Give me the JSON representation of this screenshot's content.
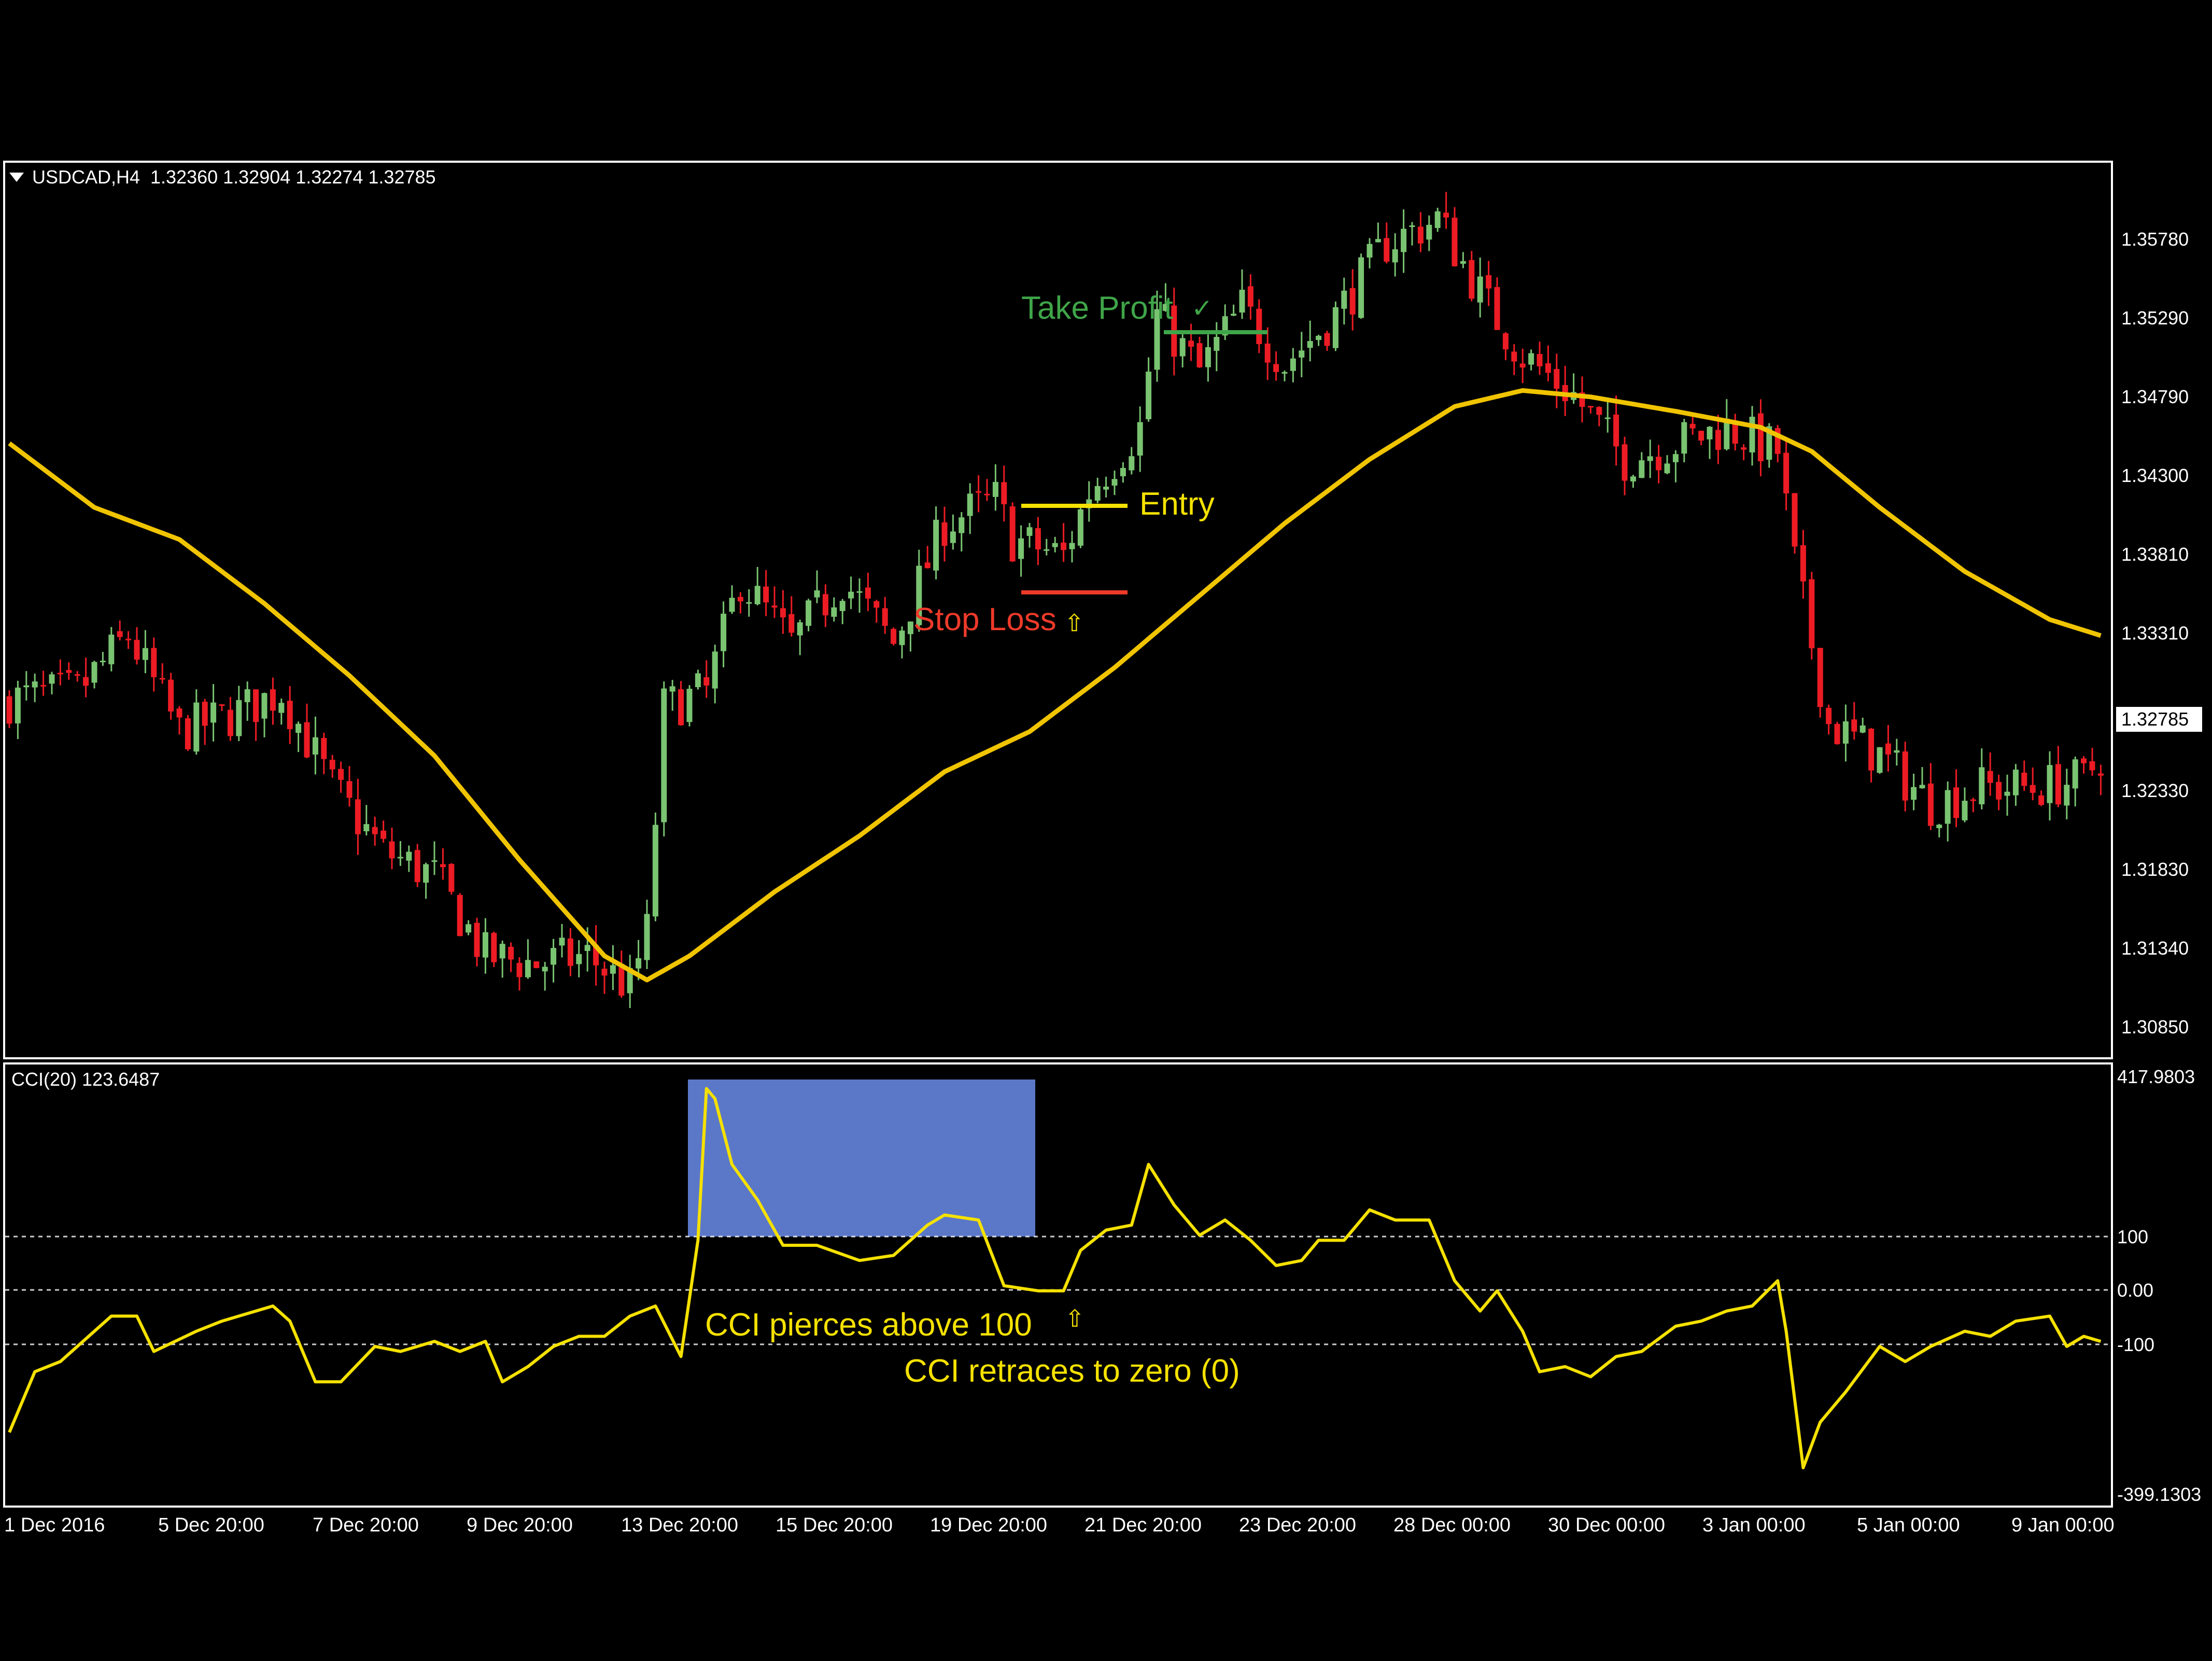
{
  "header": {
    "symbol": "USDCAD,H4",
    "ohlc": "1.32360 1.32904 1.32274 1.32785"
  },
  "indicator": {
    "label": "CCI(20) 123.6487"
  },
  "annotations": {
    "take_profit": "Take Profit",
    "check_mark": "✓",
    "entry": "Entry",
    "stop_loss": "Stop Loss",
    "upper_arrow": "⇧",
    "cci_pierce": "CCI pierces above 100",
    "cci_retrace": "CCI retraces to zero (0)",
    "lower_arrow": "⇧"
  },
  "colors": {
    "background": "#000000",
    "bull": "#79c371",
    "bear": "#ed1c24",
    "ma_line": "#f0c400",
    "cci_line": "#f5e100",
    "highlight": "#5b78c8",
    "take_profit": "#3fa549",
    "entry": "#f5e100",
    "stop_loss": "#ee3a2a",
    "grid": "#ffffff",
    "axis_text": "#ffffff"
  },
  "chart_data": {
    "type": "candlestick",
    "symbol": "USDCAD",
    "timeframe": "H4",
    "price_axis": {
      "ticks": [
        "1.35780",
        "1.35290",
        "1.34790",
        "1.34300",
        "1.33810",
        "1.33310",
        "1.32330",
        "1.31830",
        "1.31340",
        "1.30850"
      ],
      "current": "1.32785",
      "range": [
        1.3065,
        1.3615
      ]
    },
    "time_axis": {
      "labels": [
        "1 Dec 2016",
        "5 Dec 20:00",
        "7 Dec 20:00",
        "9 Dec 20:00",
        "13 Dec 20:00",
        "15 Dec 20:00",
        "19 Dec 20:00",
        "21 Dec 20:00",
        "23 Dec 20:00",
        "28 Dec 00:00",
        "30 Dec 00:00",
        "3 Jan 00:00",
        "5 Jan 00:00",
        "9 Jan 00:00"
      ]
    },
    "price_anchors": [
      [
        0,
        1.3285
      ],
      [
        8,
        1.329
      ],
      [
        14,
        1.3325
      ],
      [
        20,
        1.3265
      ],
      [
        26,
        1.3275
      ],
      [
        32,
        1.329
      ],
      [
        38,
        1.323
      ],
      [
        44,
        1.319
      ],
      [
        50,
        1.3175
      ],
      [
        56,
        1.3125
      ],
      [
        62,
        1.312
      ],
      [
        68,
        1.3125
      ],
      [
        73,
        1.3105
      ],
      [
        75,
        1.314
      ],
      [
        77,
        1.328
      ],
      [
        82,
        1.329
      ],
      [
        86,
        1.336
      ],
      [
        92,
        1.332
      ],
      [
        98,
        1.336
      ],
      [
        104,
        1.332
      ],
      [
        110,
        1.3395
      ],
      [
        116,
        1.341
      ],
      [
        118,
        1.3385
      ],
      [
        124,
        1.3375
      ],
      [
        127,
        1.3415
      ],
      [
        133,
        1.3455
      ],
      [
        135,
        1.3525
      ],
      [
        140,
        1.349
      ],
      [
        145,
        1.353
      ],
      [
        150,
        1.3495
      ],
      [
        156,
        1.3525
      ],
      [
        162,
        1.357
      ],
      [
        168,
        1.3585
      ],
      [
        174,
        1.353
      ],
      [
        178,
        1.35
      ],
      [
        184,
        1.3475
      ],
      [
        190,
        1.3435
      ],
      [
        196,
        1.3445
      ],
      [
        202,
        1.3455
      ],
      [
        208,
        1.344
      ],
      [
        210,
        1.337
      ],
      [
        214,
        1.327
      ],
      [
        220,
        1.325
      ],
      [
        226,
        1.322
      ],
      [
        232,
        1.323
      ],
      [
        238,
        1.323
      ],
      [
        244,
        1.3235
      ],
      [
        246,
        1.325
      ]
    ],
    "moving_average": [
      [
        0,
        1.3445
      ],
      [
        10,
        1.3405
      ],
      [
        20,
        1.3385
      ],
      [
        30,
        1.3345
      ],
      [
        40,
        1.33
      ],
      [
        50,
        1.325
      ],
      [
        60,
        1.3185
      ],
      [
        70,
        1.3125
      ],
      [
        75,
        1.311
      ],
      [
        80,
        1.3125
      ],
      [
        90,
        1.3165
      ],
      [
        100,
        1.32
      ],
      [
        110,
        1.324
      ],
      [
        120,
        1.3265
      ],
      [
        130,
        1.3305
      ],
      [
        140,
        1.335
      ],
      [
        150,
        1.3395
      ],
      [
        160,
        1.3435
      ],
      [
        170,
        1.3468
      ],
      [
        178,
        1.3478
      ],
      [
        186,
        1.3474
      ],
      [
        196,
        1.3465
      ],
      [
        206,
        1.3455
      ],
      [
        212,
        1.344
      ],
      [
        220,
        1.3405
      ],
      [
        230,
        1.3365
      ],
      [
        240,
        1.3335
      ],
      [
        246,
        1.3325
      ]
    ],
    "cci": {
      "axis_ticks": [
        "417.9803",
        "100",
        "0.00",
        "-100",
        "-399.1303"
      ],
      "range": [
        -399.1303,
        417.9803
      ],
      "levels": [
        100,
        0,
        -100
      ],
      "values": [
        [
          0,
          -280
        ],
        [
          3,
          -160
        ],
        [
          6,
          -140
        ],
        [
          10,
          -80
        ],
        [
          12,
          -50
        ],
        [
          15,
          -50
        ],
        [
          17,
          -120
        ],
        [
          22,
          -80
        ],
        [
          25,
          -60
        ],
        [
          29,
          -40
        ],
        [
          31,
          -30
        ],
        [
          33,
          -60
        ],
        [
          36,
          -180
        ],
        [
          39,
          -180
        ],
        [
          43,
          -110
        ],
        [
          46,
          -120
        ],
        [
          50,
          -100
        ],
        [
          53,
          -120
        ],
        [
          56,
          -100
        ],
        [
          58,
          -180
        ],
        [
          61,
          -150
        ],
        [
          64,
          -110
        ],
        [
          67,
          -90
        ],
        [
          70,
          -90
        ],
        [
          73,
          -50
        ],
        [
          76,
          -30
        ],
        [
          79,
          -130
        ],
        [
          81,
          100
        ],
        [
          82,
          400
        ],
        [
          83,
          380
        ],
        [
          85,
          250
        ],
        [
          88,
          180
        ],
        [
          91,
          90
        ],
        [
          95,
          90
        ],
        [
          100,
          60
        ],
        [
          104,
          70
        ],
        [
          108,
          130
        ],
        [
          110,
          150
        ],
        [
          114,
          140
        ],
        [
          117,
          10
        ],
        [
          121,
          0
        ],
        [
          124,
          0
        ],
        [
          126,
          80
        ],
        [
          129,
          120
        ],
        [
          132,
          130
        ],
        [
          134,
          250
        ],
        [
          137,
          170
        ],
        [
          140,
          110
        ],
        [
          143,
          140
        ],
        [
          146,
          100
        ],
        [
          149,
          50
        ],
        [
          152,
          60
        ],
        [
          154,
          100
        ],
        [
          157,
          100
        ],
        [
          160,
          160
        ],
        [
          163,
          140
        ],
        [
          167,
          140
        ],
        [
          170,
          20
        ],
        [
          173,
          -40
        ],
        [
          175,
          0
        ],
        [
          178,
          -80
        ],
        [
          180,
          -160
        ],
        [
          183,
          -150
        ],
        [
          186,
          -170
        ],
        [
          189,
          -130
        ],
        [
          192,
          -120
        ],
        [
          196,
          -70
        ],
        [
          199,
          -60
        ],
        [
          202,
          -40
        ],
        [
          205,
          -30
        ],
        [
          208,
          20
        ],
        [
          209,
          -80
        ],
        [
          211,
          -350
        ],
        [
          213,
          -260
        ],
        [
          216,
          -200
        ],
        [
          220,
          -110
        ],
        [
          223,
          -140
        ],
        [
          226,
          -110
        ],
        [
          230,
          -80
        ],
        [
          233,
          -90
        ],
        [
          236,
          -60
        ],
        [
          240,
          -50
        ],
        [
          242,
          -110
        ],
        [
          244,
          -90
        ],
        [
          246,
          -100
        ]
      ]
    }
  }
}
